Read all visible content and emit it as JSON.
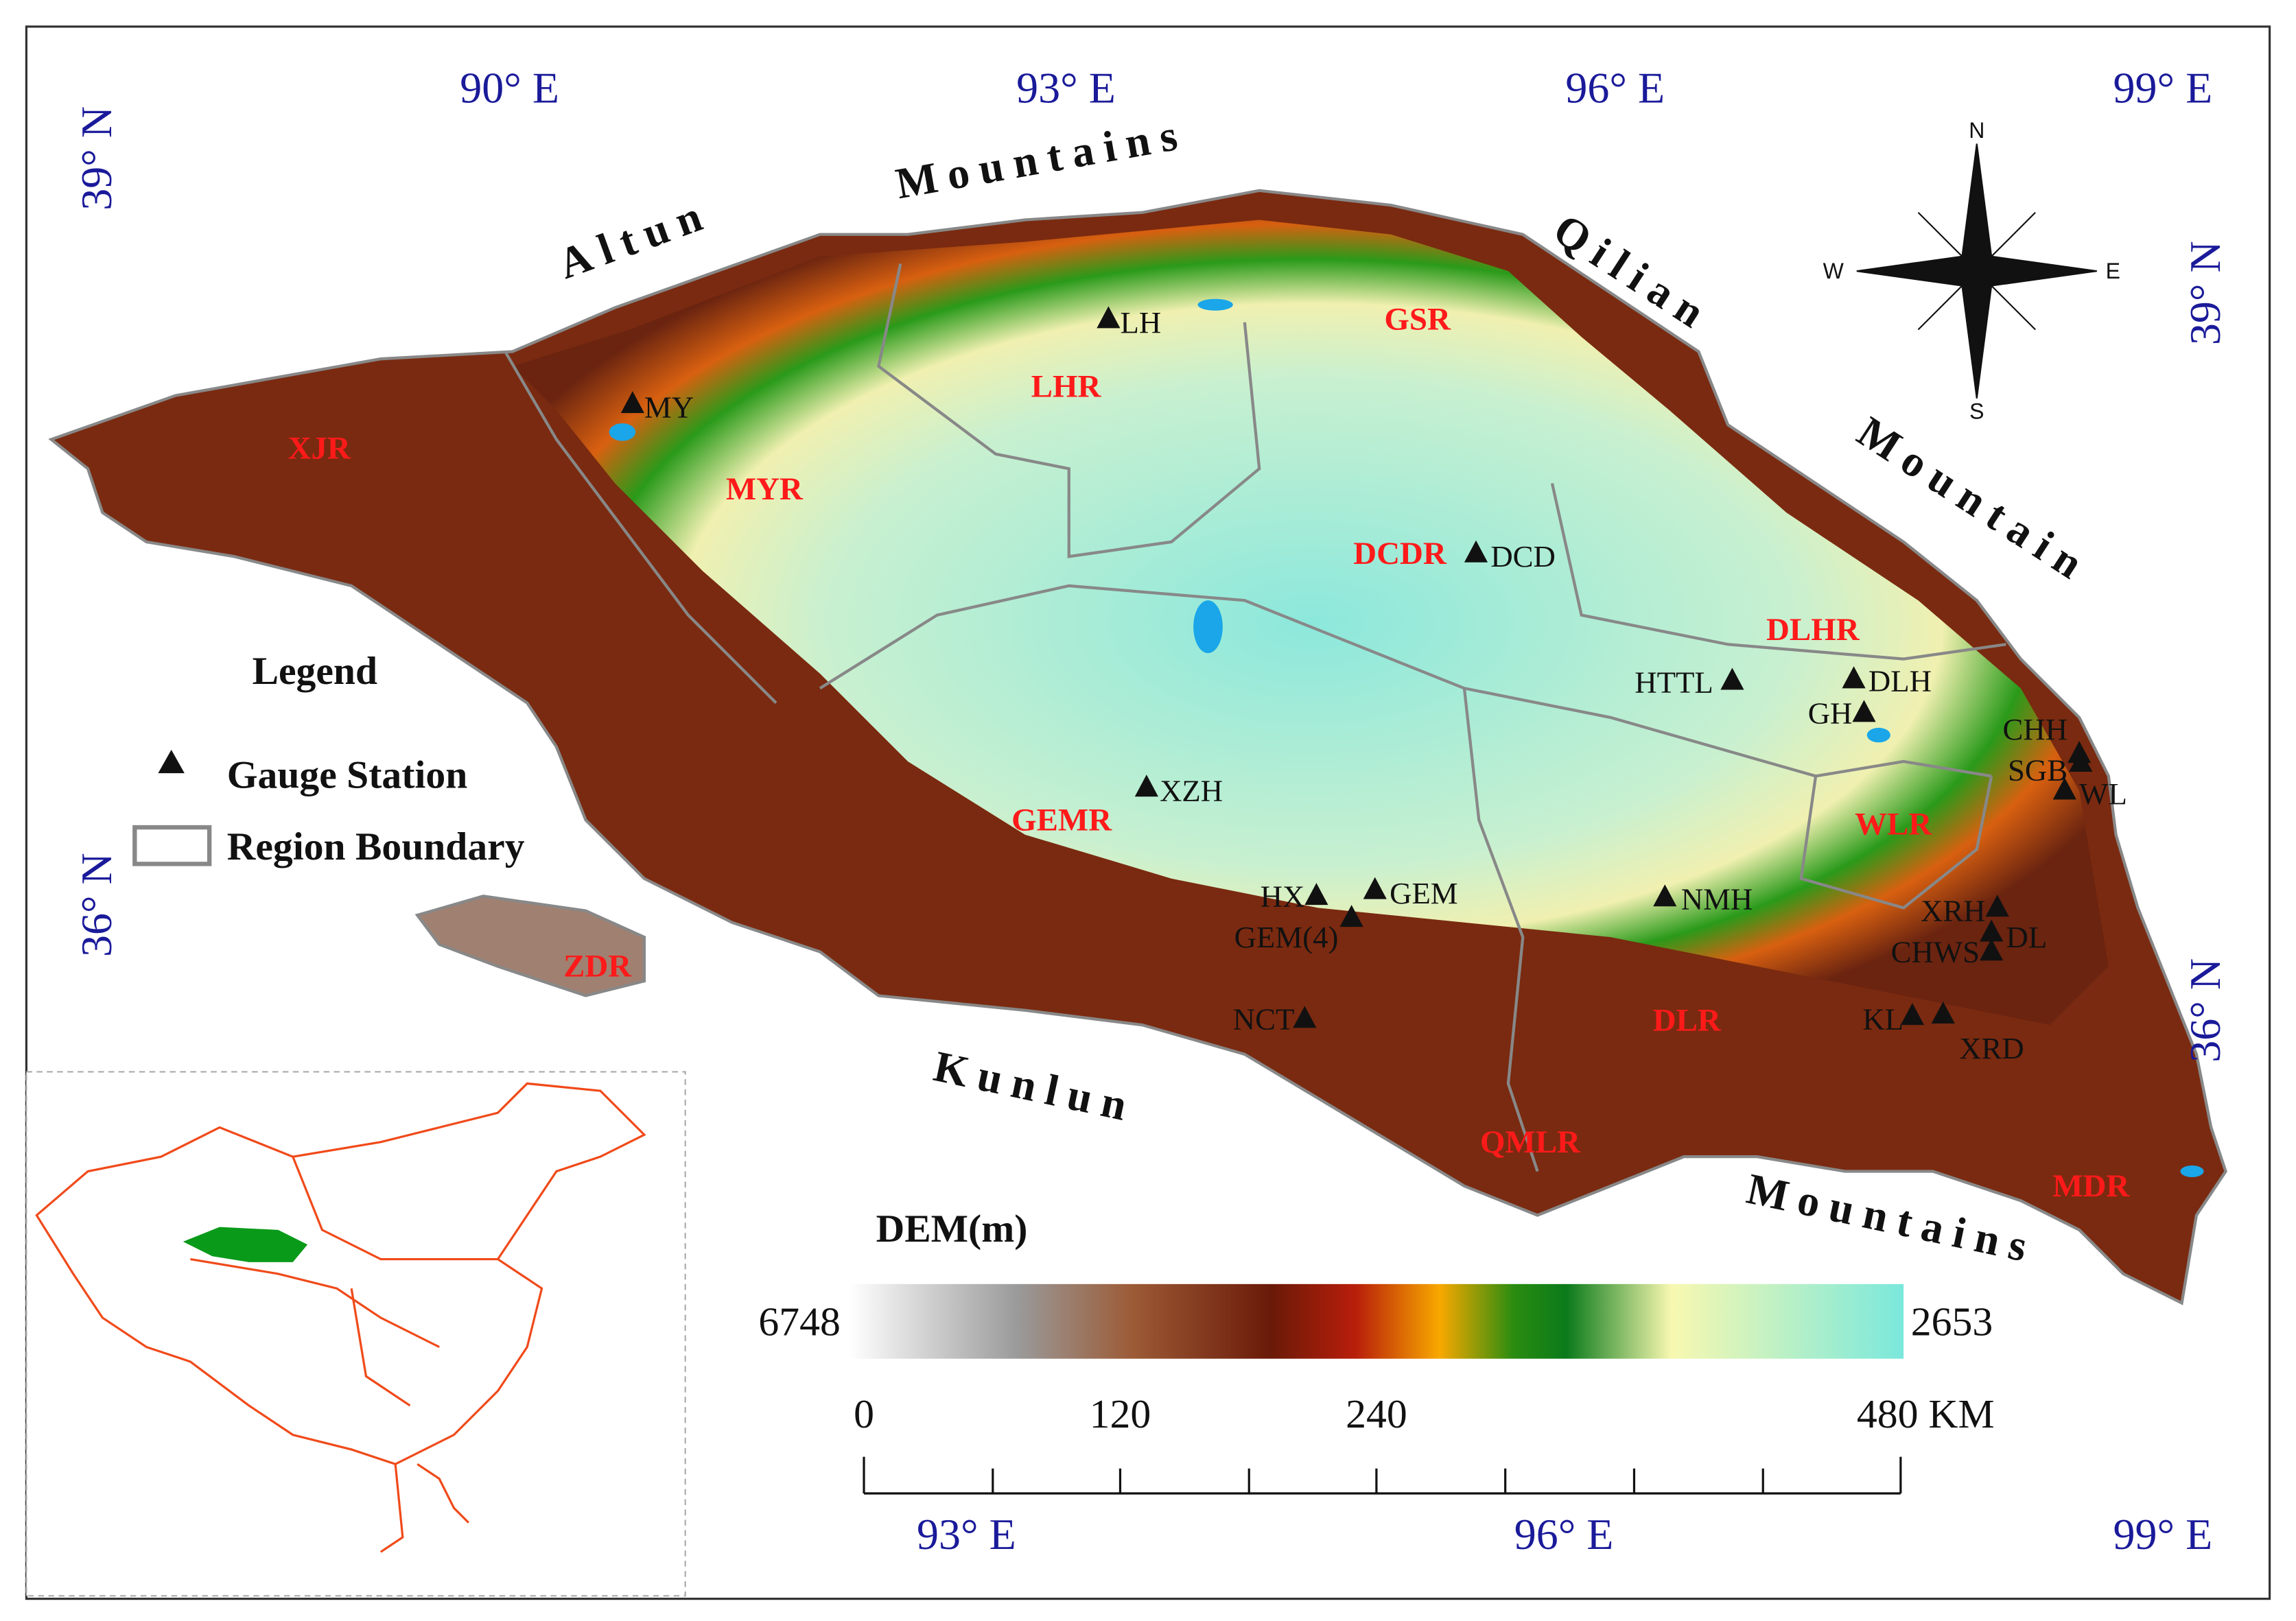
{
  "graticule": {
    "top": [
      "90° E",
      "93° E",
      "96° E",
      "99° E"
    ],
    "bottom": [
      "93° E",
      "96° E",
      "99° E"
    ],
    "left": [
      "39° N",
      "36° N"
    ],
    "right": [
      "39° N",
      "36° N"
    ]
  },
  "mountains": [
    "Altun",
    "Mountains",
    "Qilian",
    "Mountain",
    "Kunlun",
    "Mountains"
  ],
  "regions": [
    "XJR",
    "MYR",
    "LHR",
    "GSR",
    "DCDR",
    "DLHR",
    "WLR",
    "GEMR",
    "ZDR",
    "DLR",
    "QMLR",
    "MDR"
  ],
  "stations": [
    "LH",
    "MY",
    "DCD",
    "HTTL",
    "DLH",
    "GH",
    "CHH",
    "SGB",
    "WL",
    "XZH",
    "HX",
    "GEM",
    "GEM(4)",
    "NMH",
    "XRH",
    "DL",
    "CHWS",
    "NCT",
    "KL",
    "XRD"
  ],
  "legend": {
    "title": "Legend",
    "items": [
      "Gauge Station",
      "Region Boundary"
    ]
  },
  "compass": [
    "N",
    "E",
    "S",
    "W"
  ],
  "dem": {
    "title": "DEM(m)",
    "max": 6748,
    "min": 2653
  },
  "scale_bar": [
    "0",
    "120",
    "240",
    "480 KM"
  ]
}
